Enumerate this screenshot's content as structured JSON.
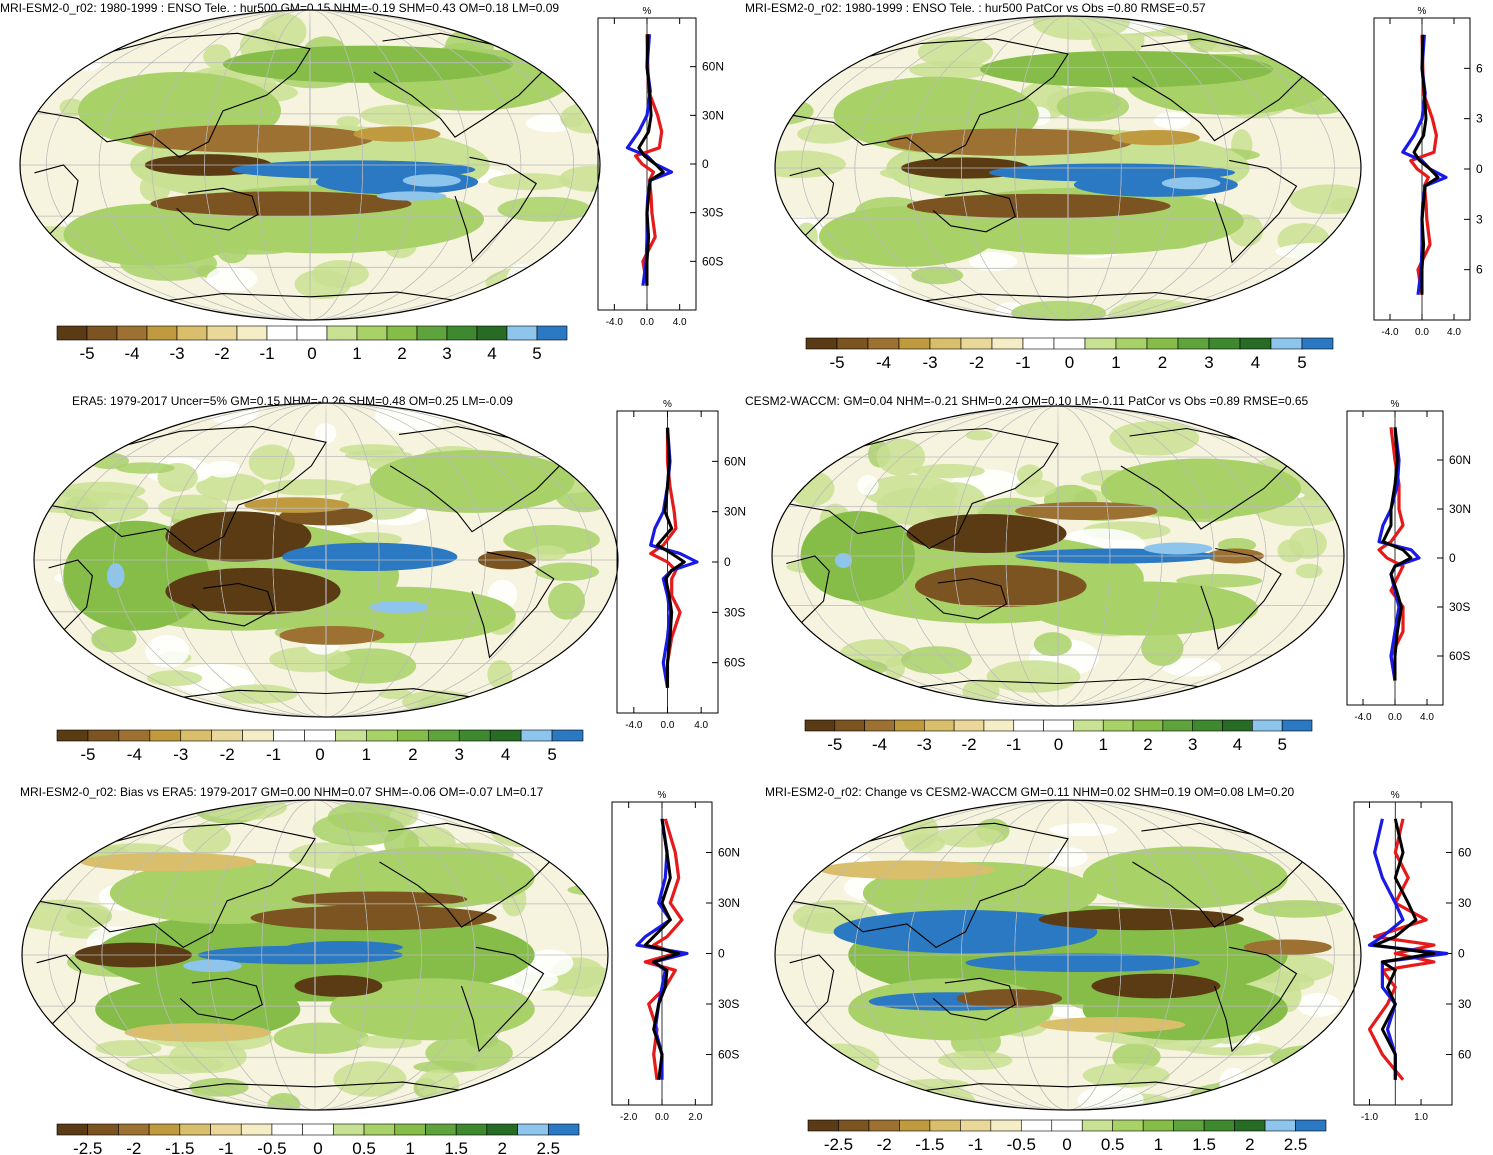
{
  "palette": [
    "#5a3b14",
    "#7b5422",
    "#9c7132",
    "#bf9a3f",
    "#d9be6b",
    "#ead89a",
    "#f4edc6",
    "#ffffff",
    "#ffffff",
    "#c9e193",
    "#a8d168",
    "#86bd49",
    "#5fa33c",
    "#3e882f",
    "#276b25",
    "#8ec5ec",
    "#2b79c2"
  ],
  "line_colors": {
    "total": "#000000",
    "land": "#1a1ae6",
    "ocean": "#e61a1a"
  },
  "panels": [
    {
      "id": "mri-esm2-0-r02-model",
      "title": "MRI-ESM2-0_r02: 1980-1999 : ENSO Tele. : hur500 GM=0.15 NHM=-0.19 SHM=0.43 OM=0.18 LM=0.09",
      "colorbar_labels": [
        "-5",
        "-4",
        "-3",
        "-2",
        "-1",
        "0",
        "1",
        "2",
        "3",
        "4",
        "5"
      ],
      "zonal": {
        "unit": "%",
        "x_ticks": [
          "-4.0",
          "0.0",
          "4.0"
        ],
        "xlim": [
          -6,
          6
        ],
        "lat_ticks": [
          "60N",
          "30N",
          "0",
          "30S",
          "60S"
        ]
      }
    },
    {
      "id": "mri-esm2-0-r02-patcor",
      "title": "MRI-ESM2-0_r02: 1980-1999 : ENSO Tele. : hur500 PatCor vs Obs =0.80 RMSE=0.57",
      "colorbar_labels": [
        "-5",
        "-4",
        "-3",
        "-2",
        "-1",
        "0",
        "1",
        "2",
        "3",
        "4",
        "5"
      ],
      "zonal": {
        "unit": "%",
        "x_ticks": [
          "-4.0",
          "0.0",
          "4.0"
        ],
        "xlim": [
          -6,
          6
        ],
        "lat_ticks": [
          "6",
          "3",
          "0",
          "3",
          "6"
        ]
      }
    },
    {
      "id": "era5-observation",
      "title": "ERA5: 1979-2017 Uncer=5% GM=0.15 NHM=-0.26 SHM=0.48 OM=0.25 LM=-0.09",
      "colorbar_labels": [
        "-5",
        "-4",
        "-3",
        "-2",
        "-1",
        "0",
        "1",
        "2",
        "3",
        "4",
        "5"
      ],
      "zonal": {
        "unit": "%",
        "x_ticks": [
          "-4.0",
          "0.0",
          "4.0"
        ],
        "xlim": [
          -6,
          6
        ],
        "lat_ticks": [
          "60N",
          "30N",
          "0",
          "30S",
          "60S"
        ]
      }
    },
    {
      "id": "cesm2-waccm",
      "title": "CESM2-WACCM: GM=0.04 NHM=-0.21 SHM=0.24 OM=0.10 LM=-0.11 PatCor vs Obs =0.89 RMSE=0.65",
      "colorbar_labels": [
        "-5",
        "-4",
        "-3",
        "-2",
        "-1",
        "0",
        "1",
        "2",
        "3",
        "4",
        "5"
      ],
      "zonal": {
        "unit": "%",
        "x_ticks": [
          "-4.0",
          "0.0",
          "4.0"
        ],
        "xlim": [
          -6,
          6
        ],
        "lat_ticks": [
          "60N",
          "30N",
          "0",
          "30S",
          "60S"
        ]
      }
    },
    {
      "id": "bias-vs-era5",
      "title": "MRI-ESM2-0_r02: Bias vs ERA5: 1979-2017 GM=0.00 NHM=0.07 SHM=-0.06 OM=-0.07 LM=0.17",
      "colorbar_labels": [
        "-2.5",
        "-2",
        "-1.5",
        "-1",
        "-0.5",
        "0",
        "0.5",
        "1",
        "1.5",
        "2",
        "2.5"
      ],
      "zonal": {
        "unit": "%",
        "x_ticks": [
          "-2.0",
          "0.0",
          "2.0"
        ],
        "xlim": [
          -3,
          3
        ],
        "lat_ticks": [
          "60N",
          "30N",
          "0",
          "30S",
          "60S"
        ]
      }
    },
    {
      "id": "change-vs-cesm2-waccm",
      "title": "MRI-ESM2-0_r02: Change vs CESM2-WACCM GM=0.11 NHM=0.02 SHM=0.19 OM=0.08 LM=0.20",
      "colorbar_labels": [
        "-2.5",
        "-2",
        "-1.5",
        "-1",
        "-0.5",
        "0",
        "0.5",
        "1",
        "1.5",
        "2",
        "2.5"
      ],
      "zonal": {
        "unit": "%",
        "x_ticks": [
          "-1.0",
          "1.0"
        ],
        "xlim": [
          -1.6,
          2.2
        ],
        "lat_ticks": [
          "60",
          "30",
          "0",
          "30",
          "60"
        ]
      }
    }
  ],
  "chart_data": [
    {
      "type": "heatmap",
      "title": "MRI-ESM2-0_r02: 1980-1999 : ENSO Tele. : hur500 GM=0.15 NHM=-0.19 SHM=0.43 OM=0.18 LM=0.09",
      "variable": "hur500",
      "unit": "%",
      "levels": [
        -5,
        -4,
        -3,
        -2,
        -1,
        0,
        1,
        2,
        3,
        4,
        5
      ],
      "zonal_mean": {
        "lat": [
          80,
          60,
          45,
          30,
          20,
          10,
          5,
          0,
          -5,
          -10,
          -20,
          -30,
          -45,
          -60,
          -75
        ],
        "total": [
          0.1,
          0.0,
          0.3,
          0.5,
          0.2,
          -1.0,
          -0.3,
          1.0,
          2.0,
          0.4,
          0.2,
          0.0,
          0.2,
          0.0,
          0.0
        ],
        "land": [
          0.3,
          0.0,
          0.4,
          0.0,
          -1.0,
          -2.4,
          0.0,
          1.0,
          3.0,
          0.4,
          0.1,
          0.0,
          0.0,
          -0.1,
          -0.5
        ],
        "ocean": [
          0.0,
          0.1,
          0.2,
          1.3,
          1.8,
          1.5,
          -1.4,
          -0.6,
          0.8,
          0.3,
          0.5,
          0.6,
          1.0,
          -0.5,
          0.0
        ]
      }
    },
    {
      "type": "heatmap",
      "title": "MRI-ESM2-0_r02: 1980-1999 : ENSO Tele. : hur500 PatCor vs Obs =0.80 RMSE=0.57",
      "variable": "hur500",
      "unit": "%",
      "levels": [
        -5,
        -4,
        -3,
        -2,
        -1,
        0,
        1,
        2,
        3,
        4,
        5
      ],
      "zonal_mean": {
        "lat": [
          80,
          60,
          45,
          30,
          20,
          10,
          5,
          0,
          -5,
          -10,
          -20,
          -30,
          -45,
          -60,
          -75
        ],
        "total": [
          0.1,
          0.0,
          0.3,
          0.5,
          0.2,
          -1.0,
          -0.3,
          1.0,
          2.0,
          0.4,
          0.2,
          0.0,
          0.2,
          0.0,
          0.0
        ],
        "land": [
          0.3,
          0.0,
          0.4,
          0.0,
          -1.0,
          -2.4,
          0.0,
          1.0,
          3.0,
          0.4,
          0.1,
          0.0,
          0.0,
          -0.1,
          -0.5
        ],
        "ocean": [
          0.0,
          0.1,
          0.2,
          1.3,
          1.8,
          1.5,
          -1.4,
          -0.6,
          0.8,
          0.3,
          0.5,
          0.6,
          1.0,
          -0.5,
          0.0
        ]
      }
    },
    {
      "type": "heatmap",
      "title": "ERA5: 1979-2017 Uncer=5% GM=0.15 NHM=-0.26 SHM=0.48 OM=0.25 LM=-0.09",
      "variable": "hur500",
      "unit": "%",
      "levels": [
        -5,
        -4,
        -3,
        -2,
        -1,
        0,
        1,
        2,
        3,
        4,
        5
      ],
      "zonal_mean": {
        "lat": [
          80,
          60,
          45,
          30,
          20,
          10,
          5,
          0,
          -5,
          -10,
          -20,
          -30,
          -45,
          -60,
          -75
        ],
        "total": [
          0.0,
          0.2,
          0.0,
          -0.3,
          0.5,
          -1.2,
          0.5,
          2.0,
          0.5,
          -0.2,
          0.2,
          0.5,
          0.3,
          0.0,
          0.0
        ],
        "land": [
          0.0,
          0.3,
          0.0,
          -0.5,
          -1.5,
          -2.0,
          1.5,
          3.5,
          0.5,
          -0.5,
          0.0,
          0.3,
          0.0,
          -0.5,
          0.0
        ],
        "ocean": [
          0.0,
          0.0,
          0.3,
          0.8,
          1.0,
          -0.5,
          -2.0,
          0.0,
          1.0,
          0.5,
          0.5,
          1.5,
          0.5,
          0.0,
          0.0
        ]
      }
    },
    {
      "type": "heatmap",
      "title": "CESM2-WACCM: GM=0.04 NHM=-0.21 SHM=0.24 OM=0.10 LM=-0.11 PatCor vs Obs =0.89 RMSE=0.65",
      "variable": "hur500",
      "unit": "%",
      "levels": [
        -5,
        -4,
        -3,
        -2,
        -1,
        0,
        1,
        2,
        3,
        4,
        5
      ],
      "zonal_mean": {
        "lat": [
          80,
          60,
          45,
          30,
          20,
          10,
          5,
          0,
          -5,
          -10,
          -20,
          -30,
          -45,
          -60,
          -75
        ],
        "total": [
          0.0,
          0.3,
          0.0,
          -0.5,
          -0.5,
          -1.5,
          1.0,
          2.0,
          0.0,
          -0.5,
          0.2,
          0.8,
          0.3,
          0.0,
          0.0
        ],
        "land": [
          0.0,
          0.5,
          0.3,
          -0.5,
          -1.5,
          -2.0,
          2.0,
          3.0,
          0.0,
          -0.5,
          0.0,
          0.5,
          0.0,
          -0.5,
          0.0
        ],
        "ocean": [
          -0.5,
          0.0,
          0.5,
          0.5,
          1.0,
          -0.5,
          -2.0,
          -1.0,
          1.0,
          0.5,
          -0.5,
          1.0,
          1.0,
          -0.5,
          0.0
        ]
      }
    },
    {
      "type": "heatmap",
      "title": "MRI-ESM2-0_r02: Bias vs ERA5: 1979-2017 GM=0.00 NHM=0.07 SHM=-0.06 OM=-0.07 LM=0.17",
      "variable": "hur500",
      "unit": "%",
      "levels": [
        -2.5,
        -2,
        -1.5,
        -1,
        -0.5,
        0,
        0.5,
        1,
        1.5,
        2,
        2.5
      ],
      "zonal_mean": {
        "lat": [
          80,
          60,
          45,
          30,
          20,
          10,
          5,
          0,
          -5,
          -10,
          -20,
          -30,
          -45,
          -60,
          -75
        ],
        "total": [
          0.0,
          0.3,
          0.5,
          0.0,
          0.5,
          -0.5,
          -1.0,
          1.0,
          -0.5,
          0.3,
          0.2,
          -0.2,
          -0.5,
          0.0,
          -0.2
        ],
        "land": [
          0.0,
          0.3,
          0.2,
          -0.2,
          0.5,
          -1.0,
          -1.5,
          1.5,
          -0.5,
          0.2,
          0.0,
          -0.2,
          -0.4,
          0.0,
          0.0
        ],
        "ocean": [
          0.2,
          0.8,
          1.0,
          0.5,
          1.2,
          0.3,
          -0.5,
          0.8,
          -1.0,
          0.8,
          0.2,
          -0.8,
          -0.3,
          -0.5,
          -0.3
        ]
      }
    },
    {
      "type": "heatmap",
      "title": "MRI-ESM2-0_r02: Change vs CESM2-WACCM GM=0.11 NHM=0.02 SHM=0.19 OM=0.08 LM=0.20",
      "variable": "hur500",
      "unit": "%",
      "levels": [
        -2.5,
        -2,
        -1.5,
        -1,
        -0.5,
        0,
        0.5,
        1,
        1.5,
        2,
        2.5
      ],
      "zonal_mean": {
        "lat": [
          80,
          60,
          45,
          30,
          20,
          10,
          5,
          0,
          -5,
          -10,
          -20,
          -30,
          -45,
          -60,
          -75
        ],
        "total": [
          0.0,
          0.3,
          0.0,
          0.5,
          0.8,
          0.0,
          -0.8,
          1.5,
          -0.5,
          0.0,
          -0.3,
          0.0,
          -0.5,
          0.0,
          0.0
        ],
        "land": [
          -0.5,
          -0.8,
          -0.5,
          0.0,
          0.3,
          -0.5,
          -1.0,
          2.0,
          -0.5,
          -0.5,
          -0.5,
          0.0,
          -0.3,
          0.0,
          0.0
        ],
        "ocean": [
          0.3,
          0.0,
          0.5,
          0.0,
          1.2,
          -0.8,
          1.5,
          0.0,
          1.5,
          -0.5,
          0.0,
          -0.3,
          -1.0,
          -0.5,
          0.3
        ]
      }
    }
  ]
}
